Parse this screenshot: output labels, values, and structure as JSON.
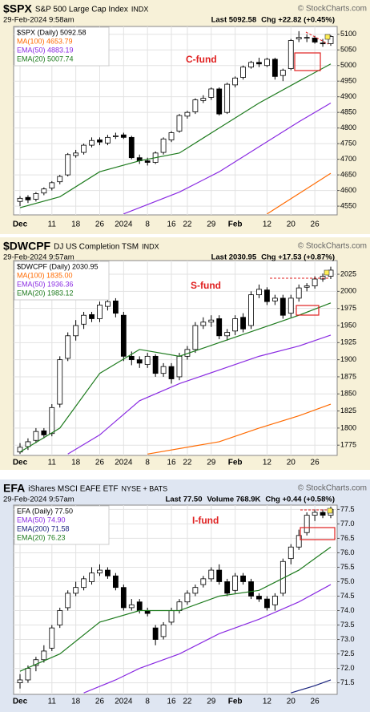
{
  "chart_data": [
    {
      "type": "candlestick",
      "title": "$SPX",
      "subtitle": "S&P 500 Large Cap Index",
      "exchange": "INDX",
      "watermark": "© StockCharts.com",
      "date": "29-Feb-2024 9:58am",
      "quote": [
        "Last 5092.58",
        "Chg +22.82 (+0.45%)"
      ],
      "annotation": "C-fund",
      "categories": [
        "Dec",
        null,
        null,
        null,
        "11",
        null,
        null,
        "18",
        null,
        null,
        "26",
        null,
        null,
        "2024",
        null,
        null,
        "8",
        null,
        null,
        "16",
        null,
        "22",
        null,
        null,
        "29",
        null,
        null,
        "Feb",
        null,
        null,
        null,
        "12",
        null,
        null,
        "20",
        null,
        null,
        "26",
        null,
        null
      ],
      "ylim": [
        4522,
        5125
      ],
      "yticks": [
        4550,
        4600,
        4650,
        4700,
        4750,
        4800,
        4850,
        4900,
        4950,
        5000,
        5050,
        5100
      ],
      "grid": true,
      "series": [
        {
          "name": "$SPX (Daily) 5092.58",
          "color": "#000000",
          "open": [
            4565,
            4578,
            4572,
            4592,
            4608,
            4628,
            4650,
            4712,
            4722,
            4745,
            4762,
            4752,
            4772,
            4778,
            4770,
            4705,
            4695,
            4690,
            4722,
            4762,
            4790,
            4838,
            4852,
            4888,
            4898,
            4925,
            4850,
            4938,
            4962,
            4995,
            5010,
            5000,
            5020,
            4968,
            4990,
            5085,
            5090,
            5088,
            5072,
            5070
          ],
          "high": [
            4582,
            4585,
            4595,
            4610,
            4630,
            4650,
            4720,
            4730,
            4750,
            4770,
            4770,
            4778,
            4785,
            4785,
            4775,
            4715,
            4705,
            4725,
            4770,
            4790,
            4845,
            4855,
            4895,
            4905,
            4930,
            4930,
            4945,
            4965,
            5000,
            5015,
            5025,
            5025,
            5025,
            4990,
            5085,
            5110,
            5100,
            5095,
            5085,
            5097
          ],
          "low": [
            4550,
            4560,
            4565,
            4585,
            4600,
            4620,
            4645,
            4705,
            4715,
            4738,
            4745,
            4745,
            4765,
            4765,
            4700,
            4685,
            4680,
            4685,
            4715,
            4755,
            4785,
            4830,
            4845,
            4880,
            4890,
            4840,
            4845,
            4930,
            4955,
            4990,
            4995,
            4995,
            4955,
            4950,
            4985,
            5075,
            5075,
            5070,
            5060,
            5063
          ],
          "close": [
            4575,
            4570,
            4590,
            4605,
            4625,
            4645,
            4715,
            4720,
            4745,
            4760,
            4755,
            4770,
            4775,
            4770,
            4705,
            4695,
            4690,
            4720,
            4765,
            4785,
            4840,
            4850,
            4890,
            4895,
            4925,
            4845,
            4940,
            4960,
            4995,
            5010,
            5005,
            5020,
            4965,
            4985,
            5080,
            5090,
            5090,
            5075,
            5070,
            5093
          ]
        },
        {
          "name": "MA(100) 4653.79",
          "color": "#ff6a00",
          "x": [
            31,
            35,
            39
          ],
          "values": [
            4525,
            4590,
            4655
          ]
        },
        {
          "name": "EMA(50) 4883.19",
          "color": "#8a2be2",
          "x": [
            13,
            20,
            25,
            30,
            35,
            39
          ],
          "values": [
            4525,
            4595,
            4660,
            4740,
            4820,
            4880
          ]
        },
        {
          "name": "EMA(20) 5007.74",
          "color": "#1e7b1e",
          "x": [
            0,
            5,
            10,
            15,
            20,
            25,
            30,
            35,
            39
          ],
          "values": [
            4545,
            4580,
            4660,
            4695,
            4720,
            4800,
            4880,
            4950,
            5005
          ]
        }
      ]
    },
    {
      "type": "candlestick",
      "title": "$DWCPF",
      "subtitle": "DJ US Completion TSM",
      "exchange": "INDX",
      "watermark": "© StockCharts.com",
      "date": "29-Feb-2024 9:57am",
      "quote": [
        "Last 2030.95",
        "Chg +17.53 (+0.87%)"
      ],
      "annotation": "S-fund",
      "categories": [
        "Dec",
        null,
        null,
        null,
        "11",
        null,
        null,
        "18",
        null,
        null,
        "26",
        null,
        null,
        "2024",
        null,
        null,
        "8",
        null,
        null,
        "16",
        null,
        "22",
        null,
        null,
        "29",
        null,
        null,
        "Feb",
        null,
        null,
        null,
        "12",
        null,
        null,
        "20",
        null,
        null,
        "26",
        null,
        null
      ],
      "ylim": [
        1760,
        2045
      ],
      "yticks": [
        1775,
        1800,
        1825,
        1850,
        1875,
        1900,
        1925,
        1950,
        1975,
        2000,
        2025
      ],
      "grid": true,
      "series": [
        {
          "name": "$DWCPF (Daily) 2030.95",
          "color": "#000000",
          "open": [
            1765,
            1773,
            1782,
            1796,
            1792,
            1835,
            1902,
            1935,
            1952,
            1966,
            1960,
            1978,
            1986,
            1965,
            1905,
            1900,
            1893,
            1905,
            1880,
            1890,
            1875,
            1905,
            1915,
            1950,
            1955,
            1960,
            1935,
            1942,
            1962,
            1950,
            1995,
            2002,
            1986,
            1990,
            1968,
            1990,
            2006,
            2008,
            2018,
            2022
          ],
          "high": [
            1778,
            1785,
            1800,
            1800,
            1835,
            1905,
            1940,
            1958,
            1970,
            1970,
            1985,
            1990,
            1990,
            1970,
            1912,
            1905,
            1910,
            1908,
            1895,
            1895,
            1910,
            1920,
            1955,
            1962,
            1965,
            1965,
            1945,
            1965,
            1968,
            2000,
            2010,
            2006,
            1995,
            1995,
            1995,
            2010,
            2012,
            2022,
            2026,
            2036
          ],
          "low": [
            1762,
            1768,
            1778,
            1785,
            1788,
            1830,
            1898,
            1928,
            1945,
            1955,
            1955,
            1972,
            1962,
            1898,
            1892,
            1888,
            1888,
            1875,
            1875,
            1865,
            1870,
            1900,
            1910,
            1945,
            1948,
            1930,
            1928,
            1936,
            1940,
            1945,
            1990,
            1980,
            1980,
            1960,
            1962,
            1985,
            2000,
            2004,
            2014,
            2018
          ],
          "close": [
            1772,
            1780,
            1795,
            1790,
            1830,
            1900,
            1935,
            1950,
            1965,
            1960,
            1980,
            1985,
            1968,
            1905,
            1900,
            1895,
            1905,
            1880,
            1890,
            1872,
            1905,
            1915,
            1950,
            1955,
            1958,
            1935,
            1940,
            1960,
            1945,
            1995,
            2003,
            1985,
            1990,
            1965,
            1990,
            2005,
            2008,
            2018,
            2022,
            2031
          ]
        },
        {
          "name": "MA(100) 1835.00",
          "color": "#ff6a00",
          "x": [
            16,
            25,
            30,
            35,
            39
          ],
          "values": [
            1762,
            1780,
            1800,
            1818,
            1835
          ]
        },
        {
          "name": "EMA(50) 1936.36",
          "color": "#8a2be2",
          "x": [
            6,
            10,
            15,
            20,
            25,
            30,
            35,
            39
          ],
          "values": [
            1762,
            1790,
            1840,
            1865,
            1885,
            1905,
            1920,
            1936
          ]
        },
        {
          "name": "EMA(20) 1983.12",
          "color": "#1e7b1e",
          "x": [
            0,
            5,
            10,
            15,
            20,
            25,
            30,
            35,
            39
          ],
          "values": [
            1765,
            1800,
            1880,
            1915,
            1905,
            1925,
            1945,
            1965,
            1983
          ]
        }
      ]
    },
    {
      "type": "candlestick",
      "title": "EFA",
      "subtitle": "iShares MSCI EAFE ETF",
      "exchange": "NYSE + BATS",
      "watermark": "© StockCharts.com",
      "date": "29-Feb-2024 9:57am",
      "quote": [
        "Last 77.50",
        "Volume 768.9K",
        "Chg +0.44 (+0.58%)"
      ],
      "annotation": "I-fund",
      "categories": [
        "Dec",
        null,
        null,
        null,
        "11",
        null,
        null,
        "18",
        null,
        null,
        "26",
        null,
        null,
        "2024",
        null,
        null,
        "8",
        null,
        null,
        "16",
        null,
        "22",
        null,
        null,
        "29",
        null,
        null,
        "Feb",
        null,
        null,
        null,
        "12",
        null,
        null,
        "20",
        null,
        null,
        "26",
        null,
        null
      ],
      "ylim": [
        71.1,
        77.65
      ],
      "yticks": [
        71.5,
        {
          "value": 72,
          "label": "72.0"
        },
        72.5,
        {
          "value": 73,
          "label": "73.0"
        },
        73.5,
        {
          "value": 74,
          "label": "74.0"
        },
        74.5,
        {
          "value": 75,
          "label": "75.0"
        },
        75.5,
        {
          "value": 76,
          "label": "76.0"
        },
        76.5,
        {
          "value": 77,
          "label": "77.0"
        },
        77.5
      ],
      "grid": true,
      "series": [
        {
          "name": "EFA (Daily) 77.50",
          "color": "#000000",
          "open": [
            71.5,
            71.6,
            72.1,
            72.3,
            72.7,
            73.5,
            74.1,
            74.6,
            74.8,
            75.0,
            75.3,
            75.4,
            75.2,
            74.8,
            74.1,
            74.3,
            74.0,
            73.4,
            73.1,
            73.6,
            74.0,
            74.3,
            74.6,
            74.9,
            75.1,
            75.4,
            75.0,
            74.7,
            75.2,
            75.0,
            74.5,
            74.4,
            74.2,
            74.6,
            75.8,
            76.2,
            76.7,
            77.3,
            77.4,
            77.3
          ],
          "high": [
            71.8,
            72.1,
            72.4,
            72.8,
            73.5,
            74.1,
            74.7,
            75.0,
            75.2,
            75.5,
            75.6,
            75.5,
            75.3,
            74.9,
            74.4,
            74.4,
            74.1,
            73.5,
            73.6,
            74.1,
            74.4,
            74.7,
            74.9,
            75.2,
            75.5,
            75.6,
            75.1,
            75.3,
            75.3,
            75.1,
            74.6,
            74.5,
            74.6,
            75.8,
            76.3,
            76.8,
            77.4,
            77.5,
            77.5,
            77.6
          ],
          "low": [
            71.3,
            71.5,
            71.9,
            72.2,
            72.6,
            73.4,
            74.0,
            74.5,
            74.7,
            74.9,
            75.2,
            75.1,
            74.7,
            74.0,
            74.0,
            73.9,
            73.8,
            72.8,
            73.0,
            73.5,
            73.9,
            74.2,
            74.5,
            74.8,
            75.0,
            74.9,
            74.5,
            74.6,
            74.9,
            74.4,
            74.3,
            74.0,
            74.0,
            74.5,
            75.6,
            76.1,
            76.6,
            77.1,
            77.2,
            77.2
          ],
          "close": [
            71.6,
            72,
            72.3,
            72.6,
            73.4,
            74,
            74.6,
            74.8,
            75.1,
            75.3,
            75.4,
            75.2,
            74.8,
            74.1,
            74.2,
            74,
            73.9,
            73,
            73.5,
            74,
            74.3,
            74.6,
            74.8,
            75.1,
            75.4,
            75,
            74.6,
            75.2,
            75,
            74.5,
            74.4,
            74.1,
            74.5,
            75.7,
            76.2,
            76.6,
            77.3,
            77.4,
            77.3,
            77.5
          ]
        },
        {
          "name": "EMA(50) 74.90",
          "color": "#8a2be2",
          "x": [
            8,
            12,
            15,
            20,
            25,
            30,
            35,
            39
          ],
          "values": [
            71.15,
            71.6,
            72,
            72.5,
            73.2,
            73.7,
            74.3,
            74.9
          ]
        },
        {
          "name": "EMA(200) 71.58",
          "color": "#1a237e",
          "x": [
            34,
            37,
            39
          ],
          "values": [
            71.15,
            71.4,
            71.6
          ]
        },
        {
          "name": "EMA(20) 76.23",
          "color": "#1e7b1e",
          "x": [
            0,
            5,
            10,
            15,
            20,
            25,
            30,
            35,
            39
          ],
          "values": [
            71.9,
            72.5,
            73.6,
            74,
            74,
            74.5,
            74.7,
            75.4,
            76.2
          ]
        }
      ]
    }
  ]
}
